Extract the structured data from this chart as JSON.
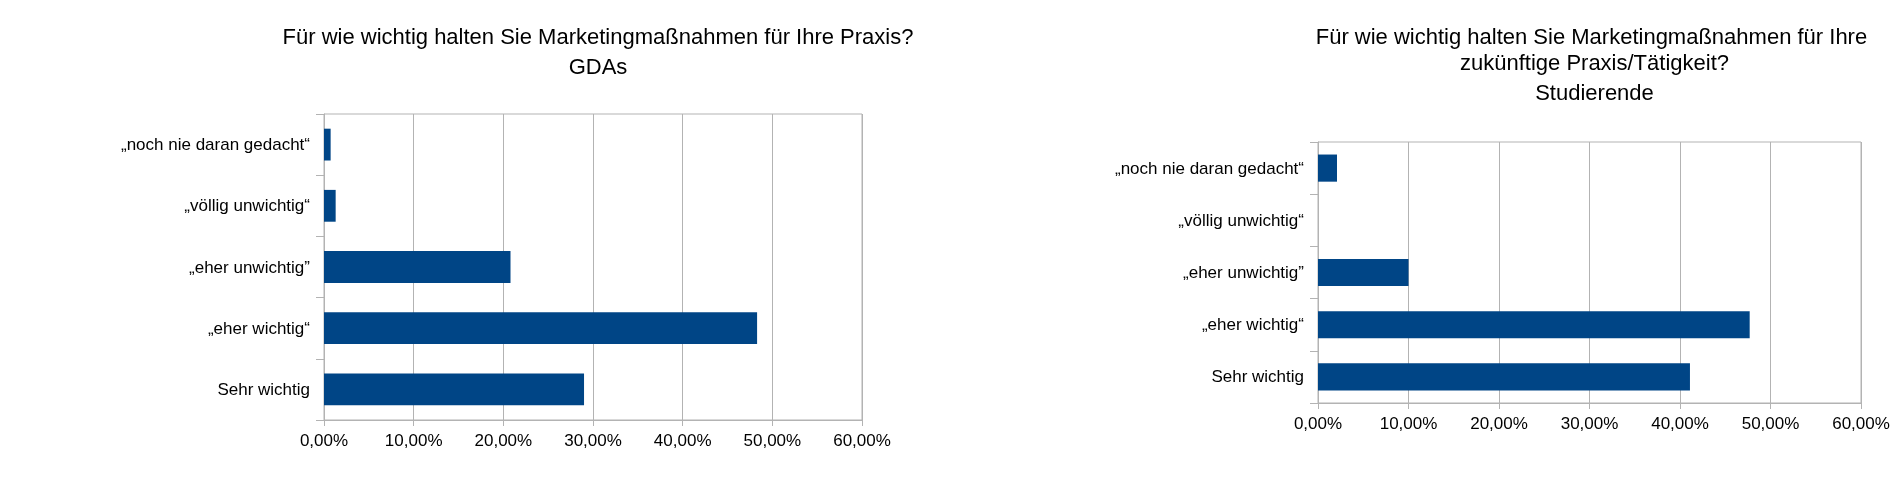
{
  "chart_data": [
    {
      "type": "bar",
      "orientation": "horizontal",
      "title": "Für wie wichtig halten Sie Marketingmaßnahmen für Ihre Praxis?",
      "subtitle": "GDAs",
      "categories": [
        "„noch nie daran gedacht“",
        "„völlig unwichtig“",
        "„eher unwichtig”",
        "„eher wichtig“",
        "Sehr wichtig"
      ],
      "values": [
        0.74,
        1.3,
        20.8,
        48.3,
        29.0
      ],
      "color": "#004586",
      "xlim": [
        0,
        60
      ],
      "xticks": [
        {
          "value": 0,
          "label": "0,00%"
        },
        {
          "value": 10,
          "label": "10,00%"
        },
        {
          "value": 20,
          "label": "20,00%"
        },
        {
          "value": 30,
          "label": "30,00%"
        },
        {
          "value": 40,
          "label": "40,00%"
        },
        {
          "value": 50,
          "label": "50,00%"
        },
        {
          "value": 60,
          "label": "60,00%"
        }
      ],
      "grid": "x"
    },
    {
      "type": "bar",
      "orientation": "horizontal",
      "title": "Für wie wichtig halten Sie Marketingmaßnahmen für Ihre zukünftige Praxis/Tätigkeit?",
      "subtitle": "Studierende",
      "categories": [
        "„noch nie daran gedacht“",
        "„völlig unwichtig“",
        "„eher unwichtig”",
        "„eher wichtig“",
        "Sehr wichtig"
      ],
      "values": [
        2.1,
        0,
        10.0,
        47.7,
        41.1
      ],
      "color": "#004586",
      "xlim": [
        0,
        60
      ],
      "xticks": [
        {
          "value": 0,
          "label": "0,00%"
        },
        {
          "value": 10,
          "label": "10,00%"
        },
        {
          "value": 20,
          "label": "20,00%"
        },
        {
          "value": 30,
          "label": "30,00%"
        },
        {
          "value": 40,
          "label": "40,00%"
        },
        {
          "value": 50,
          "label": "50,00%"
        },
        {
          "value": 60,
          "label": "60,00%"
        }
      ],
      "grid": "x"
    }
  ]
}
